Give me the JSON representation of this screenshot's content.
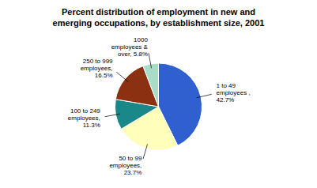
{
  "chart_data": {
    "type": "pie",
    "title": "Percent distribution of employment in new and\nemerging occupations, by establishment size, 2001",
    "categories": [
      "1 to 49\nemployees ,\n42.7%",
      "50 to 99\nemployees,\n23.7%",
      "100 to 249\nemployees,\n11.3%",
      "250 to 999\nemployees,\n16.5%",
      "1000\nemployees &\nover, 5.8%"
    ],
    "values": [
      42.7,
      23.7,
      11.3,
      16.5,
      5.8
    ],
    "colors": [
      "#3060d0",
      "#ffffbb",
      "#1a8888",
      "#8b3010",
      "#aaddc8"
    ]
  }
}
